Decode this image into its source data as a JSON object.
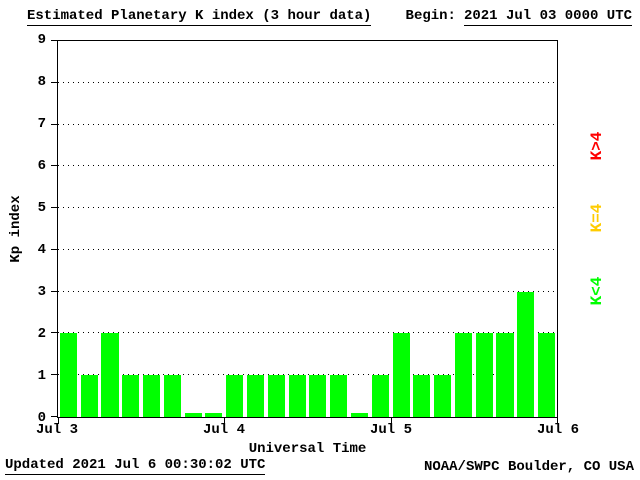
{
  "header": {
    "title": "Estimated Planetary K index (3 hour data)",
    "begin_label": "Begin:",
    "begin_value": "2021 Jul 03 0000 UTC"
  },
  "chart_data": {
    "type": "bar",
    "title": "Estimated Planetary K index (3 hour data)",
    "begin": "2021 Jul 03 0000 UTC",
    "xlabel": "Universal Time",
    "ylabel": "Kp index",
    "ylim": [
      0,
      9
    ],
    "yticks": [
      0,
      1,
      2,
      3,
      4,
      5,
      6,
      7,
      8,
      9
    ],
    "xticklabels": [
      "Jul 3",
      "Jul 4",
      "Jul 5",
      "Jul 6"
    ],
    "interval_hours": 3,
    "bar_color": "#00FF00",
    "grid": {
      "horizontal": true,
      "style": "dotted"
    },
    "values": [
      2,
      1,
      2,
      1,
      1,
      1,
      0,
      0,
      1,
      1,
      1,
      1,
      1,
      1,
      0,
      1,
      2,
      1,
      1,
      2,
      2,
      2,
      3,
      2
    ],
    "legend": [
      {
        "label": "K>4",
        "color": "#FF0000"
      },
      {
        "label": "K=4",
        "color": "#FFCC00"
      },
      {
        "label": "K<4",
        "color": "#00FF00"
      }
    ]
  },
  "footer": {
    "updated": "Updated 2021 Jul  6 00:30:02 UTC",
    "source": "NOAA/SWPC Boulder, CO USA"
  }
}
